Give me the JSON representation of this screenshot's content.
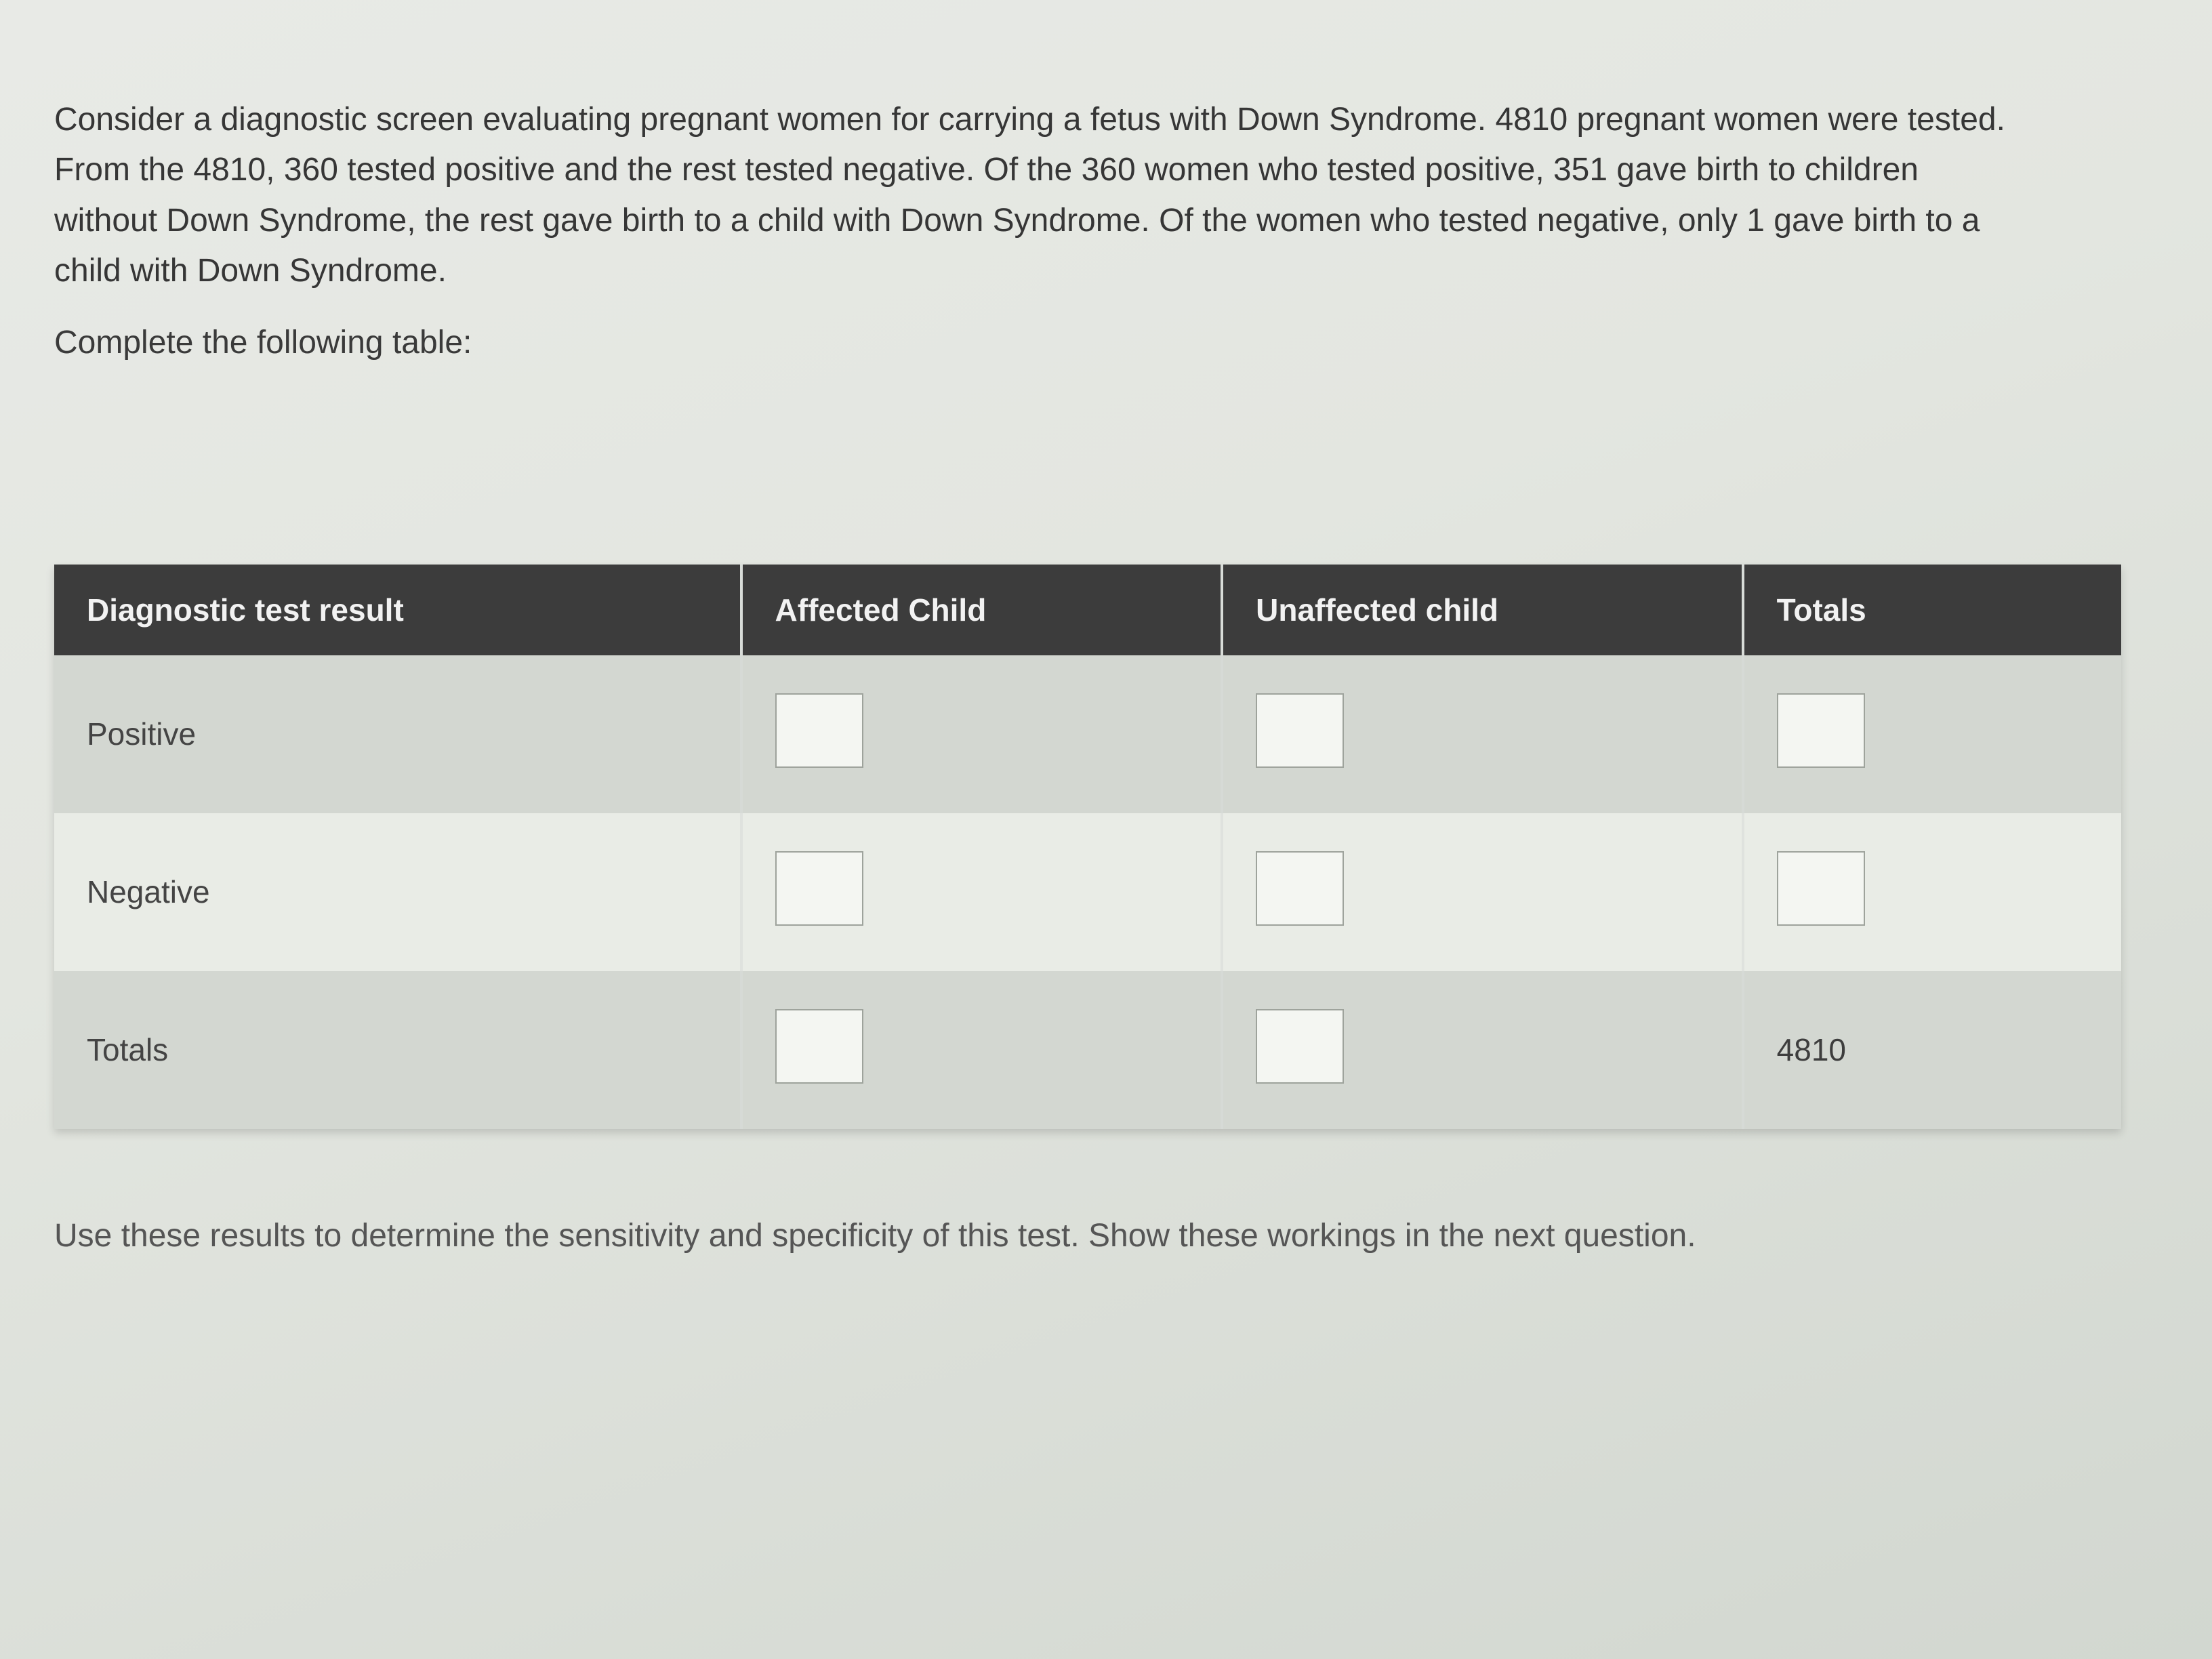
{
  "question": {
    "prompt": "Consider a diagnostic screen evaluating pregnant women for carrying a fetus with Down Syndrome.  4810 pregnant women were tested.  From the 4810, 360 tested positive and the rest tested negative.  Of the 360 women who tested positive, 351 gave birth to children without Down Syndrome, the rest gave birth to a child with Down Syndrome.  Of the women who tested negative, only 1 gave birth to a child with Down Syndrome.",
    "instruction": "Complete the following table:",
    "footnote": "Use these results to determine the sensitivity and specificity of this test.  Show these workings in the next question."
  },
  "table": {
    "headers": {
      "result": "Diagnostic test result",
      "affected": "Affected Child",
      "unaffected": "Unaffected child",
      "totals": "Totals"
    },
    "rows": {
      "positive_label": "Positive",
      "negative_label": "Negative",
      "totals_label": "Totals",
      "grand_total": "4810"
    }
  },
  "styling": {
    "header_bg": "#3c3c3c",
    "header_fg": "#f2f2f2",
    "row_bg_odd": "#d3d7d1",
    "row_bg_even": "#e9ece6",
    "input_bg": "#f4f6f2",
    "input_border": "#9ea39c",
    "page_bg": "#d8dcd8",
    "font_size_body": 48,
    "font_size_table": 46
  }
}
